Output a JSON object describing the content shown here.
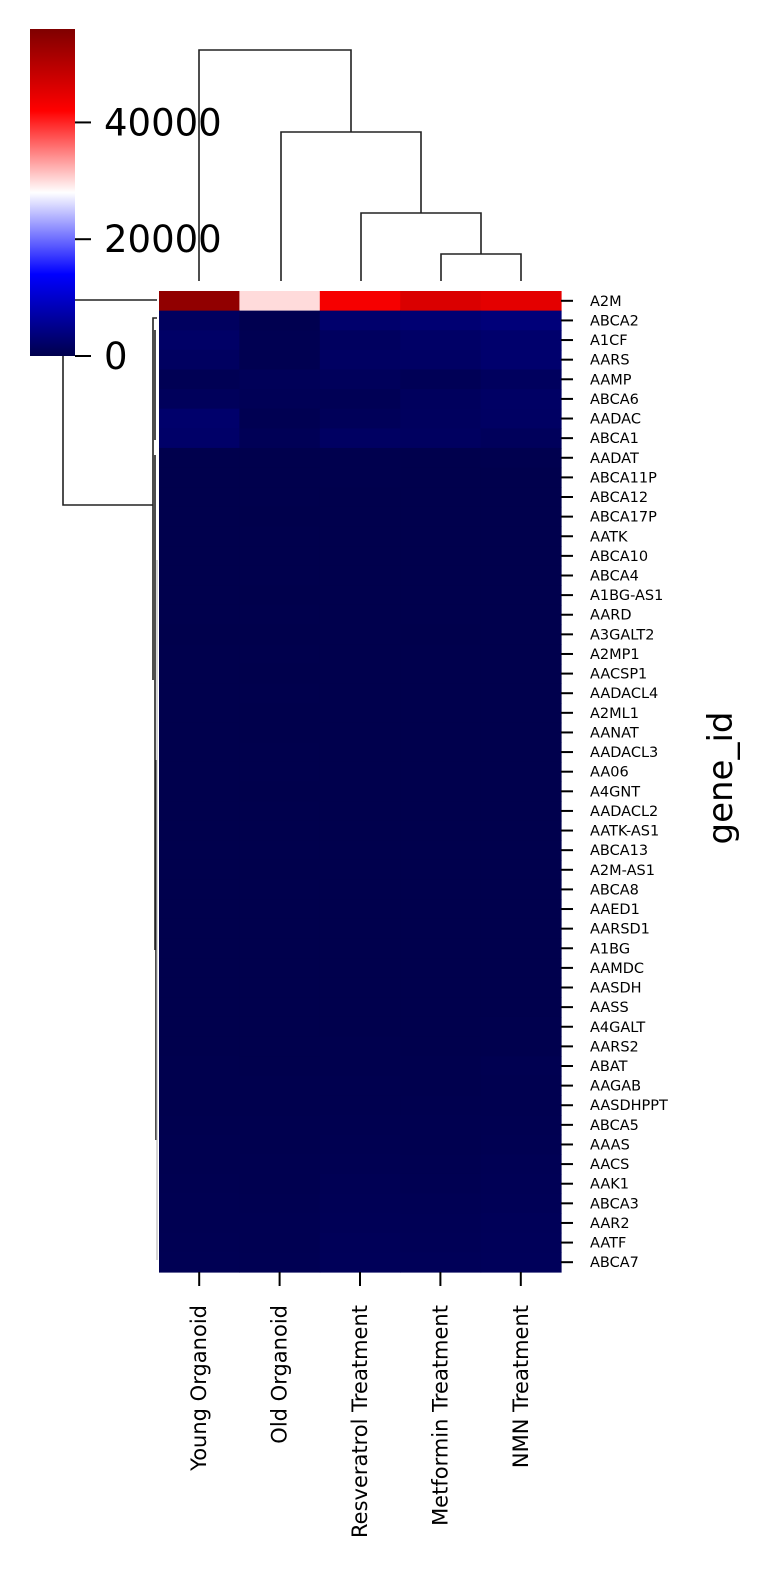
{
  "chart_data": {
    "type": "heatmap",
    "title": "",
    "xlabel": "",
    "ylabel": "gene_id",
    "columns": [
      "Young Organoid",
      "Old Organoid",
      "Resveratrol Treatment",
      "Metformin Treatment",
      "NMN Treatment"
    ],
    "rows": [
      "A2M",
      "ABCA2",
      "A1CF",
      "AARS",
      "AAMP",
      "ABCA6",
      "AADAC",
      "ABCA1",
      "AADAT",
      "ABCA11P",
      "ABCA12",
      "ABCA17P",
      "AATK",
      "ABCA10",
      "ABCA4",
      "A1BG-AS1",
      "AARD",
      "A3GALT2",
      "A2MP1",
      "AACSP1",
      "AADACL4",
      "A2ML1",
      "AANAT",
      "AADACL3",
      "AA06",
      "A4GNT",
      "AADACL2",
      "AATK-AS1",
      "ABCA13",
      "A2M-AS1",
      "ABCA8",
      "AAED1",
      "AARSD1",
      "A1BG",
      "AAMDC",
      "AASDH",
      "AASS",
      "A4GALT",
      "AARS2",
      "ABAT",
      "AAGAB",
      "AASDHPPT",
      "ABCA5",
      "AAAS",
      "AACS",
      "AAK1",
      "ABCA3",
      "AAR2",
      "AATF",
      "ABCA7"
    ],
    "values": [
      [
        54000,
        30000,
        43000,
        46000,
        45000
      ],
      [
        1500,
        300,
        2500,
        3000,
        3500
      ],
      [
        2000,
        500,
        1500,
        2000,
        2500
      ],
      [
        1600,
        400,
        1700,
        1900,
        2600
      ],
      [
        600,
        900,
        1200,
        800,
        1400
      ],
      [
        1200,
        800,
        700,
        1300,
        1900
      ],
      [
        2400,
        500,
        1000,
        1400,
        1800
      ],
      [
        2200,
        800,
        1700,
        1600,
        1200
      ],
      [
        50,
        100,
        150,
        100,
        200
      ],
      [
        80,
        60,
        120,
        90,
        100
      ],
      [
        60,
        40,
        80,
        70,
        90
      ],
      [
        40,
        30,
        60,
        50,
        70
      ],
      [
        70,
        50,
        90,
        80,
        60
      ],
      [
        50,
        40,
        60,
        50,
        80
      ],
      [
        90,
        60,
        100,
        70,
        90
      ],
      [
        40,
        30,
        50,
        40,
        60
      ],
      [
        60,
        50,
        70,
        60,
        80
      ],
      [
        30,
        20,
        40,
        30,
        50
      ],
      [
        50,
        40,
        60,
        50,
        70
      ],
      [
        40,
        30,
        50,
        40,
        60
      ],
      [
        60,
        40,
        80,
        60,
        70
      ],
      [
        50,
        30,
        60,
        50,
        70
      ],
      [
        40,
        30,
        50,
        40,
        60
      ],
      [
        50,
        40,
        60,
        50,
        70
      ],
      [
        60,
        50,
        70,
        60,
        80
      ],
      [
        40,
        30,
        50,
        40,
        60
      ],
      [
        50,
        40,
        60,
        50,
        70
      ],
      [
        60,
        50,
        70,
        60,
        80
      ],
      [
        50,
        40,
        60,
        50,
        70
      ],
      [
        40,
        30,
        50,
        40,
        60
      ],
      [
        60,
        50,
        70,
        60,
        80
      ],
      [
        50,
        40,
        60,
        50,
        70
      ],
      [
        70,
        60,
        80,
        70,
        90
      ],
      [
        60,
        50,
        70,
        60,
        80
      ],
      [
        80,
        70,
        90,
        80,
        100
      ],
      [
        70,
        60,
        80,
        70,
        90
      ],
      [
        90,
        80,
        100,
        90,
        110
      ],
      [
        100,
        90,
        110,
        100,
        120
      ],
      [
        110,
        100,
        120,
        110,
        130
      ],
      [
        120,
        110,
        130,
        120,
        400
      ],
      [
        150,
        130,
        200,
        180,
        300
      ],
      [
        180,
        150,
        250,
        200,
        350
      ],
      [
        250,
        200,
        300,
        280,
        400
      ],
      [
        300,
        250,
        400,
        350,
        500
      ],
      [
        350,
        300,
        500,
        400,
        600
      ],
      [
        400,
        350,
        600,
        500,
        700
      ],
      [
        450,
        400,
        700,
        600,
        800
      ],
      [
        500,
        450,
        800,
        700,
        900
      ],
      [
        550,
        500,
        900,
        800,
        1000
      ],
      [
        600,
        550,
        1000,
        900,
        1100
      ]
    ],
    "colormap": "seismic",
    "colorbar": {
      "range": [
        0,
        56000
      ],
      "ticks": [
        0,
        20000,
        40000
      ]
    },
    "colors": {
      "low": "#00004c",
      "mid": "#ffffff",
      "high": "#7f0000"
    },
    "grid": false
  }
}
